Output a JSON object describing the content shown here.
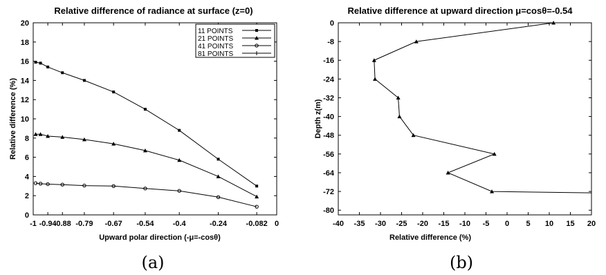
{
  "chart_data": [
    {
      "type": "line",
      "title": "Relative difference of radiance at surface (z=0)",
      "xlabel": "Upward polar direction (-μ=-cosθ)",
      "ylabel": "Relative difference (%)",
      "caption": "(a)",
      "xlim": [
        -1,
        0
      ],
      "ylim": [
        0,
        20
      ],
      "xticks": [
        "-1",
        "-0.94",
        "-0.88",
        "-0.79",
        "-0.67",
        "-0.54",
        "-0.4",
        "-0.24",
        "-0.082",
        "0"
      ],
      "yticks": [
        "0",
        "2",
        "4",
        "6",
        "8",
        "10",
        "12",
        "14",
        "16",
        "18",
        "20"
      ],
      "legend_position": "top-right",
      "series": [
        {
          "name": "11 POINTS",
          "marker": "square",
          "x": [
            -0.99,
            -0.97,
            -0.94,
            -0.88,
            -0.79,
            -0.67,
            -0.54,
            -0.4,
            -0.24,
            -0.082
          ],
          "y": [
            15.9,
            15.8,
            15.4,
            14.8,
            14.0,
            12.8,
            11.0,
            8.8,
            5.8,
            3.0
          ]
        },
        {
          "name": "21 POINTS",
          "marker": "triangle",
          "x": [
            -0.99,
            -0.97,
            -0.94,
            -0.88,
            -0.79,
            -0.67,
            -0.54,
            -0.4,
            -0.24,
            -0.082
          ],
          "y": [
            8.4,
            8.4,
            8.2,
            8.1,
            7.85,
            7.4,
            6.7,
            5.7,
            4.0,
            1.9
          ]
        },
        {
          "name": "41 POINTS",
          "marker": "circle",
          "x": [
            -0.99,
            -0.97,
            -0.94,
            -0.88,
            -0.79,
            -0.67,
            -0.54,
            -0.4,
            -0.24,
            -0.082
          ],
          "y": [
            3.3,
            3.25,
            3.2,
            3.15,
            3.05,
            3.0,
            2.75,
            2.5,
            1.85,
            0.85
          ]
        },
        {
          "name": "81 POINTS",
          "marker": "plus",
          "x": [],
          "y": []
        }
      ]
    },
    {
      "type": "line",
      "title": "Relative difference at upward direction μ=cosθ=-0.54",
      "xlabel": "Relative difference (%)",
      "ylabel": "Depth z(m)",
      "caption": "(b)",
      "xlim": [
        -40,
        20
      ],
      "ylim": [
        -82,
        0
      ],
      "xticks": [
        "-40",
        "-35",
        "-30",
        "-25",
        "-20",
        "-15",
        "-10",
        "-5",
        "0",
        "5",
        "10",
        "15",
        "20"
      ],
      "yticks": [
        "0",
        "-8",
        "-16",
        "-24",
        "-32",
        "-40",
        "-48",
        "-56",
        "-64",
        "-72",
        "-80"
      ],
      "series": [
        {
          "marker": "triangle",
          "x": [
            11,
            -21.5,
            -31.5,
            -31.3,
            -25.8,
            -25.5,
            -22.2,
            -3,
            -14,
            -3.6,
            20
          ],
          "y": [
            0,
            -8,
            -16,
            -24,
            -32,
            -40,
            -48,
            -56,
            -64,
            -72,
            -72.6
          ],
          "markers_count": 10
        }
      ]
    }
  ]
}
